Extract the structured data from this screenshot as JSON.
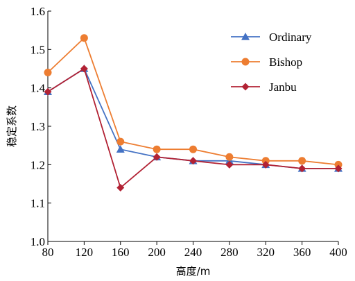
{
  "chart_data": {
    "type": "line",
    "title": "",
    "xlabel": "高度/m",
    "ylabel": "稳定系数",
    "x": [
      80,
      120,
      160,
      200,
      240,
      280,
      320,
      360,
      400
    ],
    "xlim": [
      80,
      400
    ],
    "ylim": [
      1.0,
      1.6
    ],
    "yticks": [
      1.0,
      1.1,
      1.2,
      1.3,
      1.4,
      1.5,
      1.6
    ],
    "ytick_labels": [
      "1.0",
      "1.1",
      "1.2",
      "1.3",
      "1.4",
      "1.5",
      "1.6"
    ],
    "xtick_labels": [
      "80",
      "120",
      "160",
      "200",
      "240",
      "280",
      "320",
      "360",
      "400"
    ],
    "grid": false,
    "legend_position": "top-right",
    "series": [
      {
        "name": "Ordinary",
        "color": "#4472C4",
        "marker": "triangle",
        "values": [
          1.39,
          1.45,
          1.24,
          1.22,
          1.21,
          1.21,
          1.2,
          1.19,
          1.19
        ]
      },
      {
        "name": "Bishop",
        "color": "#ED7D31",
        "marker": "circle",
        "values": [
          1.44,
          1.53,
          1.26,
          1.24,
          1.24,
          1.22,
          1.21,
          1.21,
          1.2
        ]
      },
      {
        "name": "Janbu",
        "color": "#B22234",
        "marker": "diamond",
        "values": [
          1.39,
          1.45,
          1.14,
          1.22,
          1.21,
          1.2,
          1.2,
          1.19,
          1.19
        ]
      }
    ]
  }
}
